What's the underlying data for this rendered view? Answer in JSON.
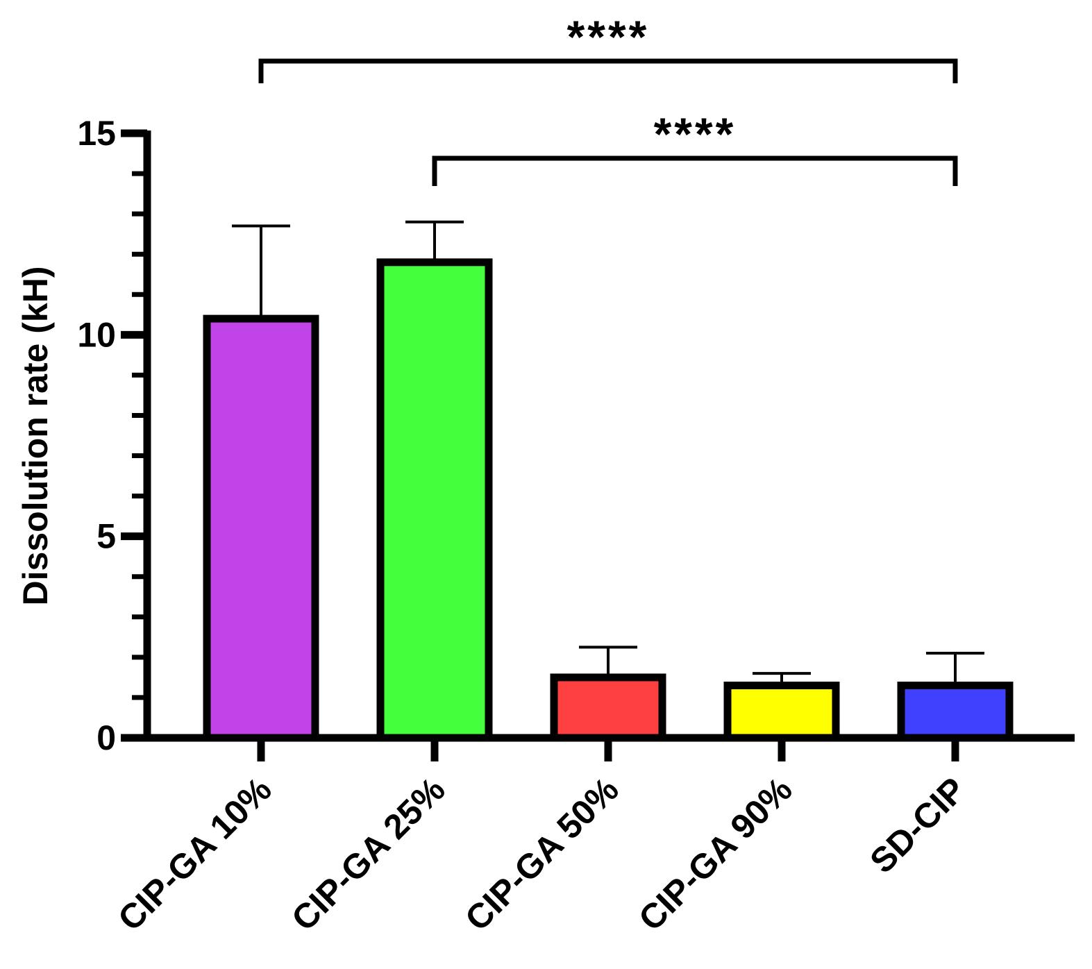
{
  "chart_data": {
    "type": "bar",
    "title": "",
    "xlabel": "",
    "ylabel": "Dissolution rate (kH)",
    "categories": [
      "CIP-GA 10%",
      "CIP-GA 25%",
      "CIP-GA 50%",
      "CIP-GA 90%",
      "SD-CIP"
    ],
    "values": [
      10.4,
      11.8,
      1.5,
      1.3,
      1.3
    ],
    "error_upper": [
      2.3,
      1.0,
      0.75,
      0.3,
      0.8
    ],
    "colors": [
      "#c044e8",
      "#44ff3c",
      "#ff4040",
      "#ffff00",
      "#4040ff"
    ],
    "ylim": [
      0,
      15
    ],
    "yticks": [
      0,
      5,
      10,
      15
    ],
    "ytick_labels": [
      "0",
      "5",
      "10",
      "15"
    ],
    "minor_tick_step": 1,
    "grid": false,
    "legend": "none",
    "significance": [
      {
        "from": "CIP-GA 10%",
        "to": "SD-CIP",
        "label": "****"
      },
      {
        "from": "CIP-GA 25%",
        "to": "SD-CIP",
        "label": "****"
      }
    ]
  }
}
